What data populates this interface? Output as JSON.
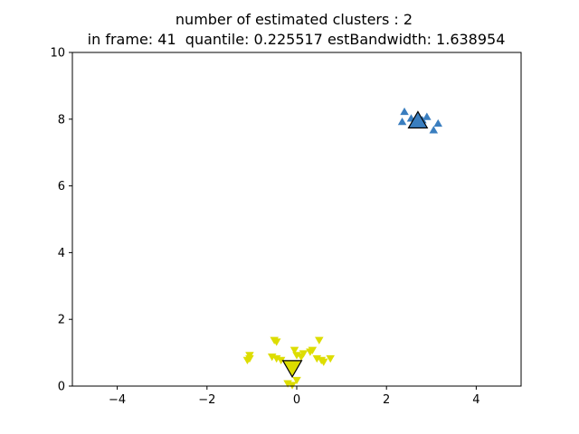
{
  "chart_data": {
    "type": "scatter",
    "title": "number of estimated clusters : 2",
    "subtitle": " in frame: 41  quantile: 0.225517 estBandwidth: 1.638954",
    "xlabel": "",
    "ylabel": "",
    "xlim": [
      -5,
      5
    ],
    "ylim": [
      0,
      10
    ],
    "xticks": [
      -4,
      -2,
      0,
      2,
      4
    ],
    "yticks": [
      0,
      2,
      4,
      6,
      8,
      10
    ],
    "grid": false,
    "series": [
      {
        "marker": "triangle-up",
        "color": "#3a7ebf",
        "points": [
          {
            "x": 2.35,
            "y": 7.9
          },
          {
            "x": 2.4,
            "y": 8.2
          },
          {
            "x": 2.55,
            "y": 8.0
          },
          {
            "x": 2.65,
            "y": 7.85
          },
          {
            "x": 2.8,
            "y": 7.95
          },
          {
            "x": 2.9,
            "y": 8.05
          },
          {
            "x": 3.05,
            "y": 7.65
          },
          {
            "x": 3.15,
            "y": 7.85
          }
        ],
        "center": {
          "x": 2.7,
          "y": 7.9
        }
      },
      {
        "marker": "triangle-down",
        "color": "#dddd00",
        "points": [
          {
            "x": -1.05,
            "y": 0.95
          },
          {
            "x": -1.05,
            "y": 0.85
          },
          {
            "x": -1.1,
            "y": 0.8
          },
          {
            "x": -0.5,
            "y": 1.4
          },
          {
            "x": -0.45,
            "y": 1.35
          },
          {
            "x": -0.55,
            "y": 0.9
          },
          {
            "x": -0.45,
            "y": 0.85
          },
          {
            "x": -0.35,
            "y": 0.8
          },
          {
            "x": -0.2,
            "y": 0.1
          },
          {
            "x": -0.1,
            "y": 0.05
          },
          {
            "x": 0.0,
            "y": 0.2
          },
          {
            "x": -0.05,
            "y": 1.1
          },
          {
            "x": 0.0,
            "y": 0.95
          },
          {
            "x": 0.1,
            "y": 0.9
          },
          {
            "x": 0.15,
            "y": 1.0
          },
          {
            "x": 0.3,
            "y": 1.05
          },
          {
            "x": 0.35,
            "y": 1.1
          },
          {
            "x": 0.5,
            "y": 1.4
          },
          {
            "x": 0.45,
            "y": 0.85
          },
          {
            "x": 0.55,
            "y": 0.8
          },
          {
            "x": 0.6,
            "y": 0.75
          },
          {
            "x": 0.75,
            "y": 0.85
          }
        ],
        "center": {
          "x": -0.1,
          "y": 0.6
        }
      }
    ]
  }
}
